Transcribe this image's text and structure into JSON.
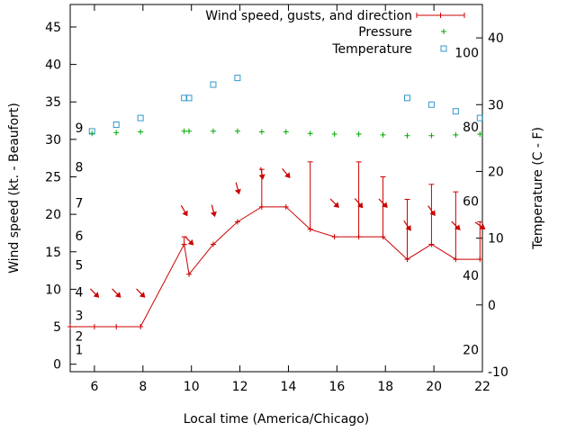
{
  "chart_data": {
    "type": "line",
    "legend_position": "top-right",
    "grid": false,
    "xlabel": "Local time (America/Chicago)",
    "ylabel": "Wind speed (kt. - Beaufort)",
    "y2label": "Temperature (C - F)",
    "xlim": [
      5,
      22
    ],
    "ylim": [
      -1,
      48
    ],
    "y2lim": [
      -10,
      45
    ],
    "x_ticks": [
      "6",
      "8",
      "10",
      "12",
      "14",
      "16",
      "18",
      "20",
      "22"
    ],
    "y_ticks": [
      "0",
      "5",
      "10",
      "15",
      "20",
      "25",
      "30",
      "35",
      "40",
      "45"
    ],
    "y2_ticks": [
      "-10",
      "0",
      "10",
      "20",
      "30",
      "40"
    ],
    "beaufort_labels": [
      "1",
      "2",
      "3",
      "4",
      "5",
      "6",
      "7",
      "8",
      "9"
    ],
    "fahrenheit_labels": [
      "20",
      "40",
      "60",
      "80",
      "100"
    ],
    "series": [
      {
        "name": "Wind speed, gusts, and direction",
        "color": "#cc0000",
        "x": [
          5.0,
          6.0,
          6.9,
          7.9,
          9.7,
          9.9,
          10.9,
          11.9,
          12.9,
          13.9,
          14.9,
          15.9,
          16.9,
          17.9,
          18.9,
          19.9,
          20.9,
          21.9
        ],
        "values": [
          5,
          5,
          5,
          5,
          16,
          12,
          16,
          19,
          21,
          21,
          18,
          17,
          17,
          17,
          14,
          16,
          14,
          14
        ],
        "gusts": [
          null,
          null,
          null,
          null,
          17,
          null,
          null,
          null,
          26,
          null,
          27,
          null,
          27,
          25,
          22,
          24,
          23,
          19
        ],
        "direction_deg": [
          null,
          315,
          315,
          315,
          330,
          315,
          345,
          345,
          350,
          320,
          null,
          315,
          320,
          315,
          325,
          325,
          315,
          305
        ]
      },
      {
        "name": "Pressure",
        "color": "#00aa00",
        "x": [
          5.9,
          6.9,
          7.9,
          9.7,
          9.9,
          10.9,
          11.9,
          12.9,
          13.9,
          14.9,
          15.9,
          16.9,
          17.9,
          18.9,
          19.9,
          20.9,
          21.9
        ],
        "values": [
          30.8,
          30.9,
          31.0,
          31.1,
          31.1,
          31.1,
          31.1,
          31.0,
          31.0,
          30.8,
          30.7,
          30.7,
          30.6,
          30.5,
          30.5,
          30.6,
          30.7
        ]
      },
      {
        "name": "Temperature",
        "color": "#3399cc",
        "x": [
          5.9,
          6.9,
          7.9,
          9.7,
          9.9,
          10.9,
          11.9,
          18.9,
          19.9,
          20.9,
          21.9
        ],
        "values": [
          26.0,
          27.0,
          28.0,
          31.0,
          31.0,
          33.0,
          34.0,
          31.0,
          30.0,
          29.0,
          28.0
        ]
      }
    ]
  }
}
